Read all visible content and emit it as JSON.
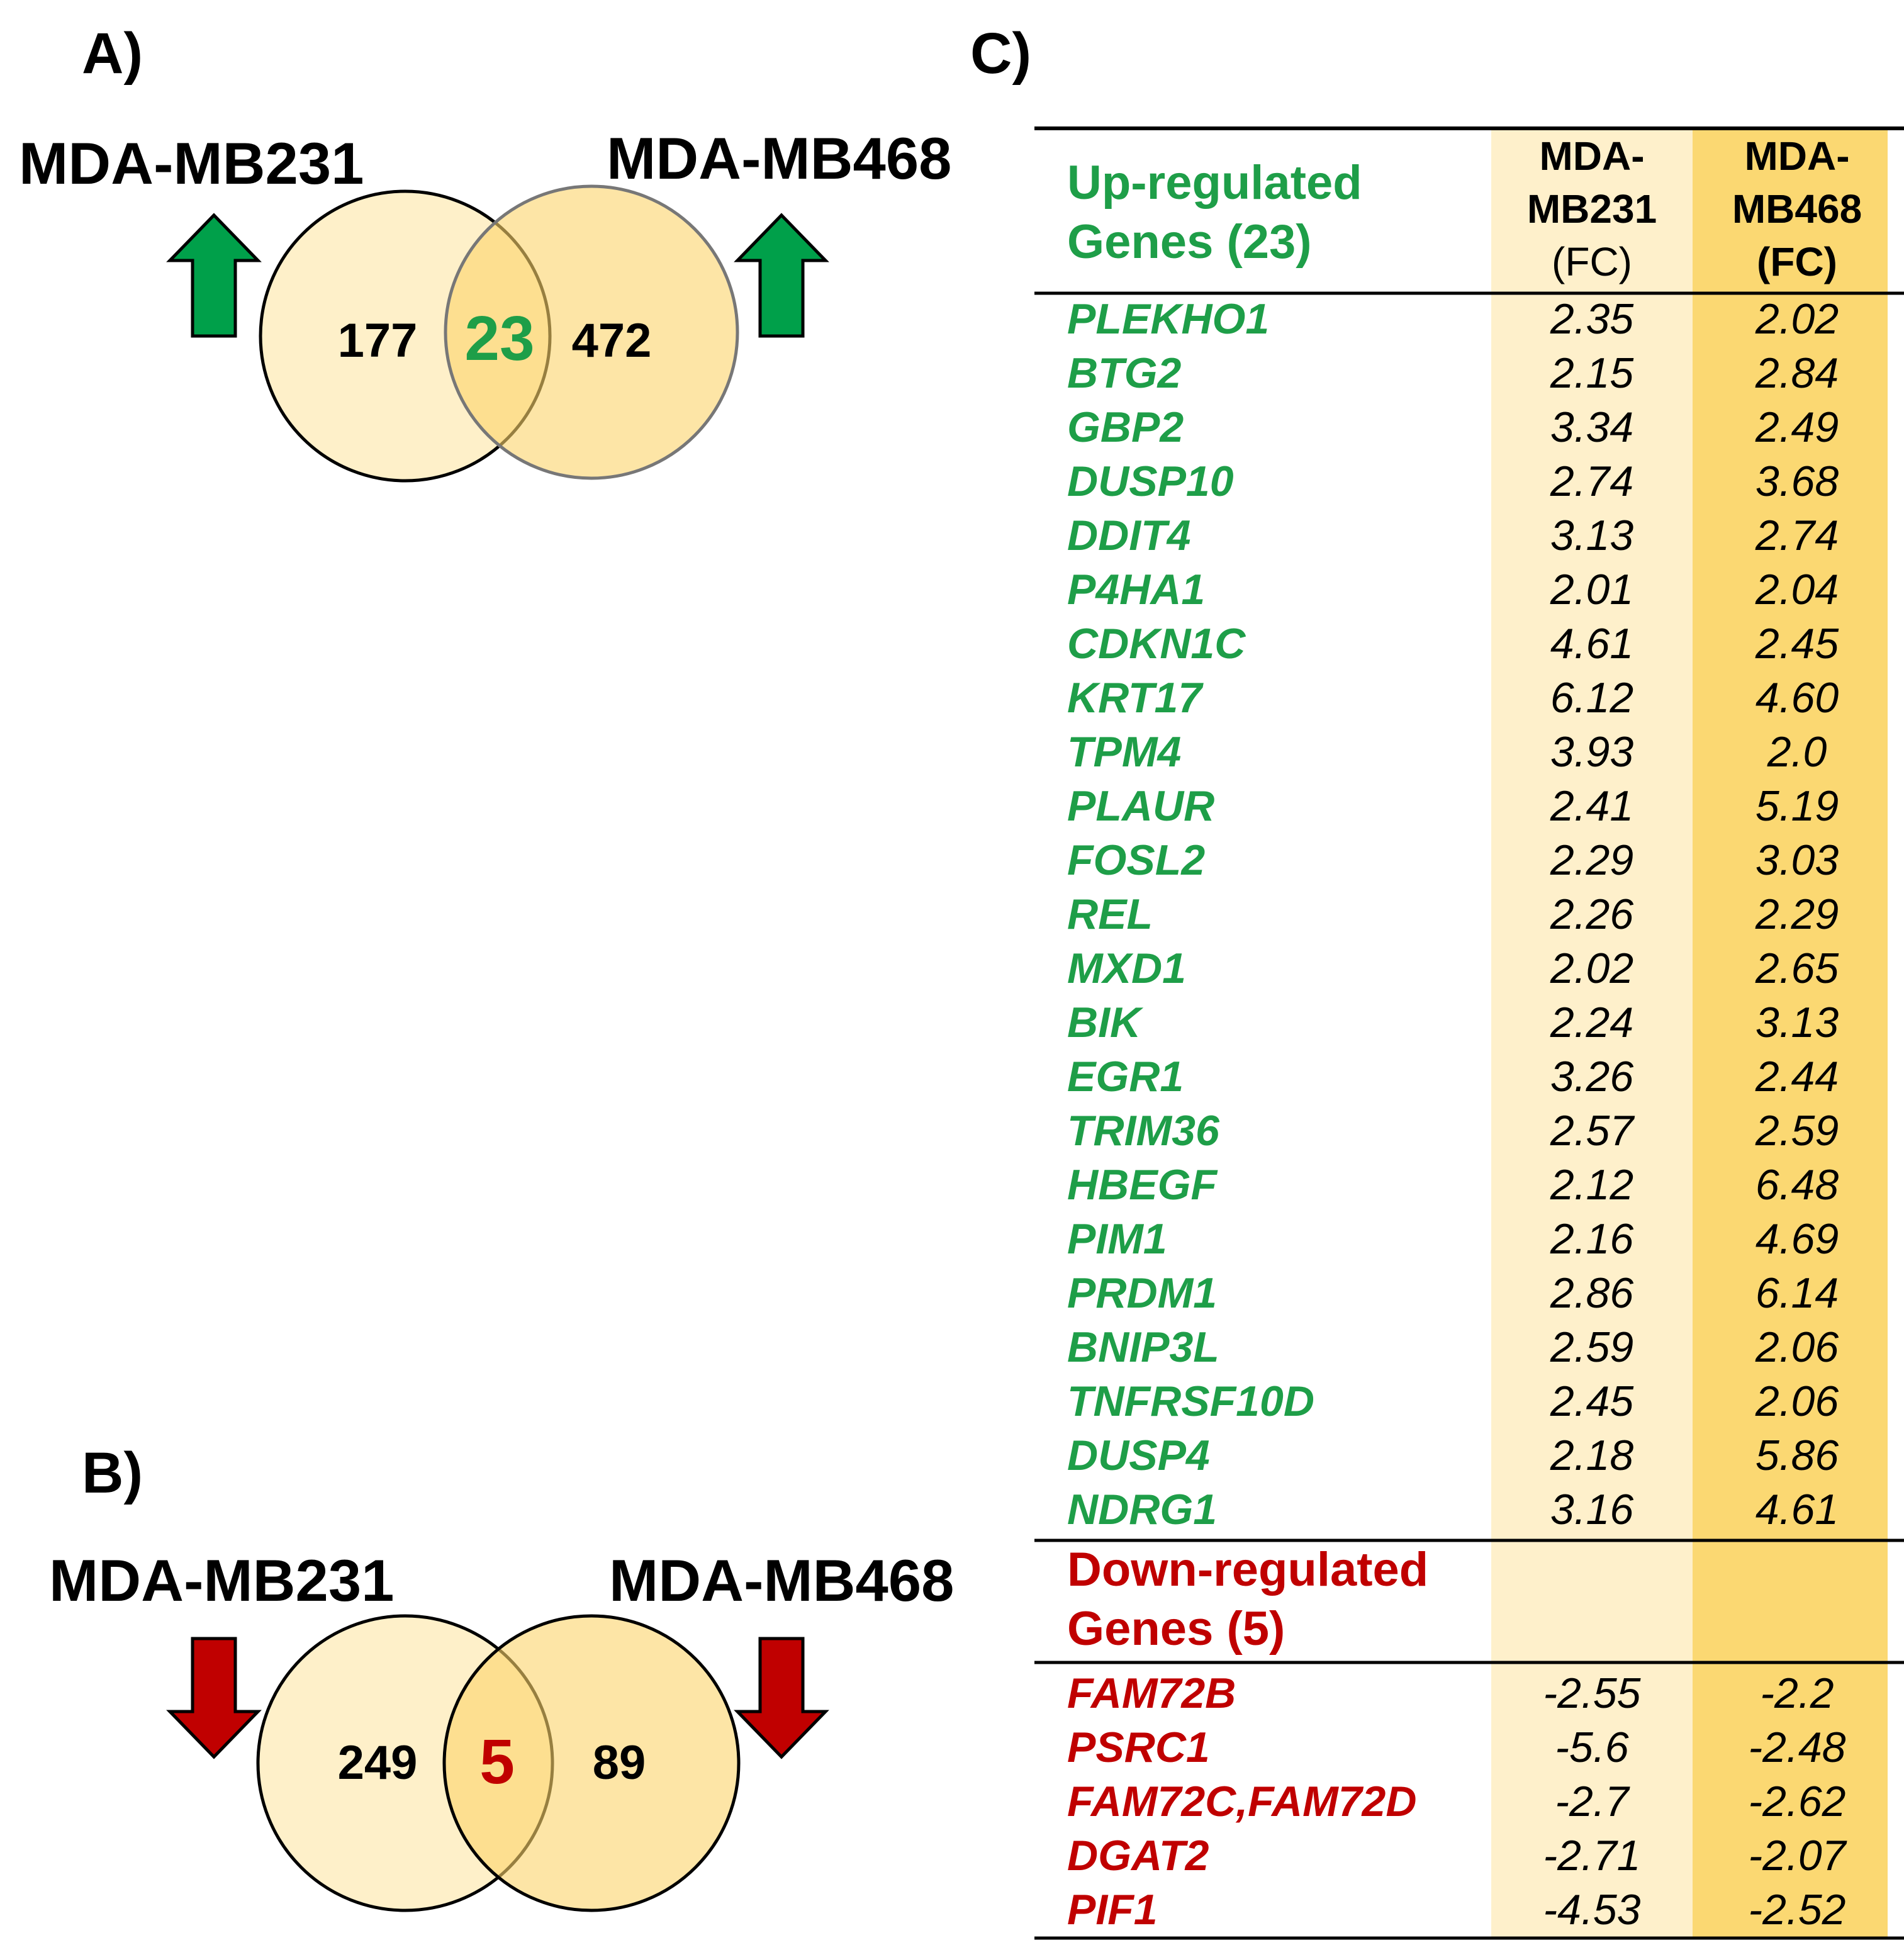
{
  "panel_a": {
    "label": "A)",
    "left_label": "MDA-MB231",
    "right_label": "MDA-MB468",
    "left_only": "177",
    "overlap": "23",
    "right_only": "472",
    "icon": "up-arrow-icon"
  },
  "panel_b": {
    "label": "B)",
    "left_label": "MDA-MB231",
    "right_label": "MDA-MB468",
    "left_only": "249",
    "overlap": "5",
    "right_only": "89",
    "icon": "down-arrow-icon"
  },
  "panel_c": {
    "label": "C)",
    "columns": {
      "mb231": [
        "MDA-",
        "MB231",
        "(FC)"
      ],
      "mb468": [
        "MDA-",
        "MB468",
        "(FC)"
      ]
    },
    "up_header": [
      "Up-regulated",
      "Genes (23)"
    ],
    "up_genes": [
      {
        "gene": "PLEKHO1",
        "mb231": "2.35",
        "mb468": "2.02"
      },
      {
        "gene": "BTG2",
        "mb231": "2.15",
        "mb468": "2.84"
      },
      {
        "gene": "GBP2",
        "mb231": "3.34",
        "mb468": "2.49"
      },
      {
        "gene": "DUSP10",
        "mb231": "2.74",
        "mb468": "3.68"
      },
      {
        "gene": "DDIT4",
        "mb231": "3.13",
        "mb468": "2.74"
      },
      {
        "gene": "P4HA1",
        "mb231": "2.01",
        "mb468": "2.04"
      },
      {
        "gene": "CDKN1C",
        "mb231": "4.61",
        "mb468": "2.45"
      },
      {
        "gene": "KRT17",
        "mb231": "6.12",
        "mb468": "4.60"
      },
      {
        "gene": "TPM4",
        "mb231": "3.93",
        "mb468": "2.0"
      },
      {
        "gene": "PLAUR",
        "mb231": "2.41",
        "mb468": "5.19"
      },
      {
        "gene": "FOSL2",
        "mb231": "2.29",
        "mb468": "3.03"
      },
      {
        "gene": "REL",
        "mb231": "2.26",
        "mb468": "2.29"
      },
      {
        "gene": "MXD1",
        "mb231": "2.02",
        "mb468": "2.65"
      },
      {
        "gene": "BIK",
        "mb231": "2.24",
        "mb468": "3.13"
      },
      {
        "gene": "EGR1",
        "mb231": "3.26",
        "mb468": "2.44"
      },
      {
        "gene": "TRIM36",
        "mb231": "2.57",
        "mb468": "2.59"
      },
      {
        "gene": "HBEGF",
        "mb231": "2.12",
        "mb468": "6.48"
      },
      {
        "gene": "PIM1",
        "mb231": "2.16",
        "mb468": "4.69"
      },
      {
        "gene": "PRDM1",
        "mb231": "2.86",
        "mb468": "6.14"
      },
      {
        "gene": "BNIP3L",
        "mb231": "2.59",
        "mb468": "2.06"
      },
      {
        "gene": "TNFRSF10D",
        "mb231": "2.45",
        "mb468": "2.06"
      },
      {
        "gene": "DUSP4",
        "mb231": "2.18",
        "mb468": "5.86"
      },
      {
        "gene": "NDRG1",
        "mb231": "3.16",
        "mb468": "4.61"
      }
    ],
    "down_header": [
      "Down-regulated",
      "Genes (5)"
    ],
    "down_genes": [
      {
        "gene": "FAM72B",
        "mb231": "-2.55",
        "mb468": "-2.2"
      },
      {
        "gene": "PSRC1",
        "mb231": "-5.6",
        "mb468": "-2.48"
      },
      {
        "gene": "FAM72C,FAM72D",
        "mb231": "-2.7",
        "mb468": "-2.62"
      },
      {
        "gene": "DGAT2",
        "mb231": "-2.71",
        "mb468": "-2.07"
      },
      {
        "gene": "PIF1",
        "mb231": "-4.53",
        "mb468": "-2.52"
      }
    ]
  },
  "colors": {
    "up_green": "#1E9E48",
    "down_red": "#C00000",
    "arrow_up_fill": "#00A04A",
    "arrow_down_fill": "#C00000",
    "venn_left_fill": "#FEF0C9",
    "venn_right_fill": "#FBD36A",
    "col_mb231_bg": "#FEF0CB",
    "col_mb468_bg": "#FBD872"
  }
}
